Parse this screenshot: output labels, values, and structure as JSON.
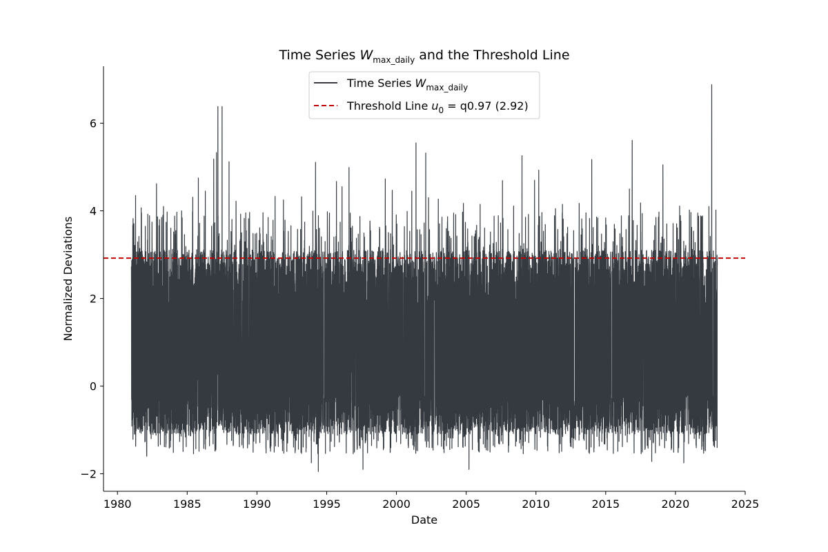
{
  "chart_data": {
    "type": "line",
    "title": {
      "prefix": "Time Series ",
      "var": "W",
      "sub": "max_daily",
      "suffix": " and the Threshold Line"
    },
    "xlabel": "Date",
    "ylabel": "Normalized Deviations",
    "xlim": [
      1979,
      2025
    ],
    "ylim": [
      -2.4,
      7.3
    ],
    "xticks": [
      1980,
      1985,
      1990,
      1995,
      2000,
      2005,
      2010,
      2015,
      2020,
      2025
    ],
    "yticks": [
      -2,
      0,
      2,
      4,
      6
    ],
    "ytick_labels": [
      "−2",
      "0",
      "2",
      "4",
      "6"
    ],
    "grid": false,
    "legend_placement": "top-center",
    "series": [
      {
        "name": {
          "prefix": "Time Series ",
          "var": "W",
          "sub": "max_daily"
        },
        "color": "#343a40",
        "x_range": [
          1981.0,
          1983.0
        ],
        "x_range_end": 2023.0,
        "y_band": [
          -1.1,
          3.1
        ],
        "peaks": [
          {
            "x": 1981.1,
            "y": 3.67
          },
          {
            "x": 1981.3,
            "y": 4.35
          },
          {
            "x": 1981.7,
            "y": 4.07
          },
          {
            "x": 1982.3,
            "y": 3.89
          },
          {
            "x": 1982.8,
            "y": 4.62
          },
          {
            "x": 1983.3,
            "y": 4.1
          },
          {
            "x": 1984.1,
            "y": 3.88
          },
          {
            "x": 1984.6,
            "y": 4.0
          },
          {
            "x": 1985.4,
            "y": 4.31
          },
          {
            "x": 1985.8,
            "y": 4.75
          },
          {
            "x": 1986.3,
            "y": 4.45
          },
          {
            "x": 1986.9,
            "y": 5.18
          },
          {
            "x": 1987.1,
            "y": 5.33
          },
          {
            "x": 1987.2,
            "y": 6.38
          },
          {
            "x": 1987.5,
            "y": 6.38
          },
          {
            "x": 1988.0,
            "y": 5.12
          },
          {
            "x": 1988.5,
            "y": 4.22
          },
          {
            "x": 1989.4,
            "y": 3.82
          },
          {
            "x": 1990.8,
            "y": 3.85
          },
          {
            "x": 1991.3,
            "y": 4.33
          },
          {
            "x": 1991.9,
            "y": 4.25
          },
          {
            "x": 1993.2,
            "y": 4.32
          },
          {
            "x": 1994.2,
            "y": 5.11
          },
          {
            "x": 1995.2,
            "y": 3.95
          },
          {
            "x": 1995.7,
            "y": 4.67
          },
          {
            "x": 1996.1,
            "y": 4.55
          },
          {
            "x": 1996.6,
            "y": 4.99
          },
          {
            "x": 1997.6,
            "y": 4.42
          },
          {
            "x": 1998.1,
            "y": 3.77
          },
          {
            "x": 1999.2,
            "y": 4.73
          },
          {
            "x": 1999.7,
            "y": 4.47
          },
          {
            "x": 2001.1,
            "y": 4.45
          },
          {
            "x": 2001.4,
            "y": 5.55
          },
          {
            "x": 2002.1,
            "y": 5.32
          },
          {
            "x": 2002.3,
            "y": 4.3
          },
          {
            "x": 2003.0,
            "y": 4.27
          },
          {
            "x": 2004.1,
            "y": 3.95
          },
          {
            "x": 2004.8,
            "y": 4.17
          },
          {
            "x": 2006.0,
            "y": 4.15
          },
          {
            "x": 2007.0,
            "y": 3.88
          },
          {
            "x": 2007.6,
            "y": 4.69
          },
          {
            "x": 2008.4,
            "y": 4.11
          },
          {
            "x": 2009.0,
            "y": 5.26
          },
          {
            "x": 2009.9,
            "y": 4.7
          },
          {
            "x": 2010.2,
            "y": 4.93
          },
          {
            "x": 2011.4,
            "y": 4.05
          },
          {
            "x": 2011.9,
            "y": 4.15
          },
          {
            "x": 2013.1,
            "y": 4.17
          },
          {
            "x": 2014.0,
            "y": 5.17
          },
          {
            "x": 2015.0,
            "y": 3.84
          },
          {
            "x": 2015.8,
            "y": 4.26
          },
          {
            "x": 2016.7,
            "y": 4.5
          },
          {
            "x": 2016.9,
            "y": 5.61
          },
          {
            "x": 2017.5,
            "y": 4.18
          },
          {
            "x": 2018.6,
            "y": 3.85
          },
          {
            "x": 2019.1,
            "y": 5.05
          },
          {
            "x": 2020.3,
            "y": 4.11
          },
          {
            "x": 2021.0,
            "y": 4.02
          },
          {
            "x": 2021.6,
            "y": 3.95
          },
          {
            "x": 2022.4,
            "y": 4.1
          },
          {
            "x": 2022.6,
            "y": 6.88
          },
          {
            "x": 2022.9,
            "y": 4.02
          }
        ],
        "troughs": [
          {
            "x": 1982.1,
            "y": -1.6
          },
          {
            "x": 1993.9,
            "y": -1.75
          },
          {
            "x": 1994.4,
            "y": -1.95
          },
          {
            "x": 1997.6,
            "y": -1.9
          },
          {
            "x": 2005.2,
            "y": -1.9
          },
          {
            "x": 2018.3,
            "y": -1.72
          },
          {
            "x": 2020.6,
            "y": -1.75
          }
        ]
      },
      {
        "name": {
          "prefix": "Threshold Line ",
          "var": "u",
          "sub": "0",
          "suffix": " = q0.97 (2.92)"
        },
        "color": "#c00000",
        "style": "dashed",
        "y": 2.92
      }
    ]
  }
}
